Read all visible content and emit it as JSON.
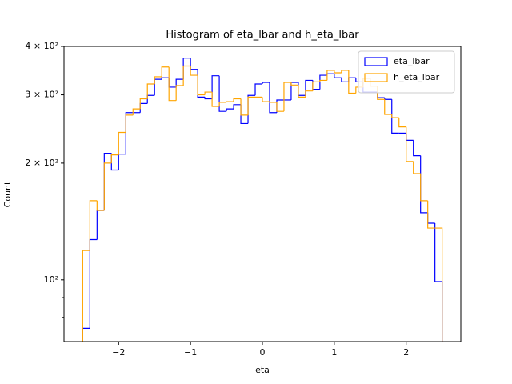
{
  "chart_data": {
    "type": "histogram",
    "title": "Histogram of eta_lbar and h_eta_lbar",
    "x_label": "eta",
    "y_label": "Count",
    "bins": [
      -2.5,
      -2.4,
      -2.3,
      -2.2,
      -2.1,
      -2.0,
      -1.9,
      -1.8,
      -1.7,
      -1.6,
      -1.5,
      -1.4,
      -1.3,
      -1.2,
      -1.1,
      -1.0,
      -0.9,
      -0.8,
      -0.7,
      -0.6,
      -0.5,
      -0.4,
      -0.3,
      -0.2,
      -0.1,
      0.0,
      0.1,
      0.2,
      0.3,
      0.4,
      0.5,
      0.6,
      0.7,
      0.8,
      0.9,
      1.0,
      1.1,
      1.2,
      1.3,
      1.4,
      1.5,
      1.6,
      1.7,
      1.8,
      1.9,
      2.0,
      2.1,
      2.2,
      2.3,
      2.4,
      2.5
    ],
    "series": [
      {
        "name": "eta_lbar",
        "color": "#0000ff",
        "values": [
          75,
          127,
          151,
          212,
          192,
          211,
          270,
          270,
          285,
          299,
          329,
          332,
          314,
          329,
          373,
          349,
          296,
          293,
          336,
          272,
          276,
          283,
          253,
          299,
          320,
          323,
          270,
          291,
          291,
          323,
          299,
          327,
          310,
          337,
          340,
          332,
          324,
          332,
          324,
          305,
          305,
          295,
          292,
          239,
          239,
          229,
          209,
          149,
          140,
          99
        ]
      },
      {
        "name": "h_eta_lbar",
        "color": "#ffa500",
        "values": [
          119,
          160,
          151,
          200,
          210,
          240,
          266,
          276,
          293,
          320,
          334,
          354,
          290,
          317,
          356,
          337,
          300,
          305,
          280,
          287,
          288,
          293,
          266,
          296,
          296,
          288,
          287,
          272,
          323,
          318,
          296,
          307,
          324,
          327,
          347,
          342,
          347,
          303,
          314,
          331,
          316,
          292,
          267,
          262,
          248,
          202,
          188,
          160,
          136,
          136
        ]
      }
    ],
    "xlim": [
      -2.76,
      2.76
    ],
    "xticks": [
      {
        "value": -2,
        "label": "−2"
      },
      {
        "value": -1,
        "label": "−1"
      },
      0,
      1,
      2
    ],
    "ylim": [
      69.3,
      400
    ],
    "yticks": [
      {
        "value": 100,
        "label": "10²"
      },
      {
        "value": 200,
        "label": "2 × 10²"
      },
      {
        "value": 300,
        "label": "3 × 10²"
      },
      {
        "value": 400,
        "label": "4 × 10²"
      }
    ],
    "yminorticks": [
      80,
      90
    ],
    "log_y": true,
    "legend": "upper right"
  }
}
